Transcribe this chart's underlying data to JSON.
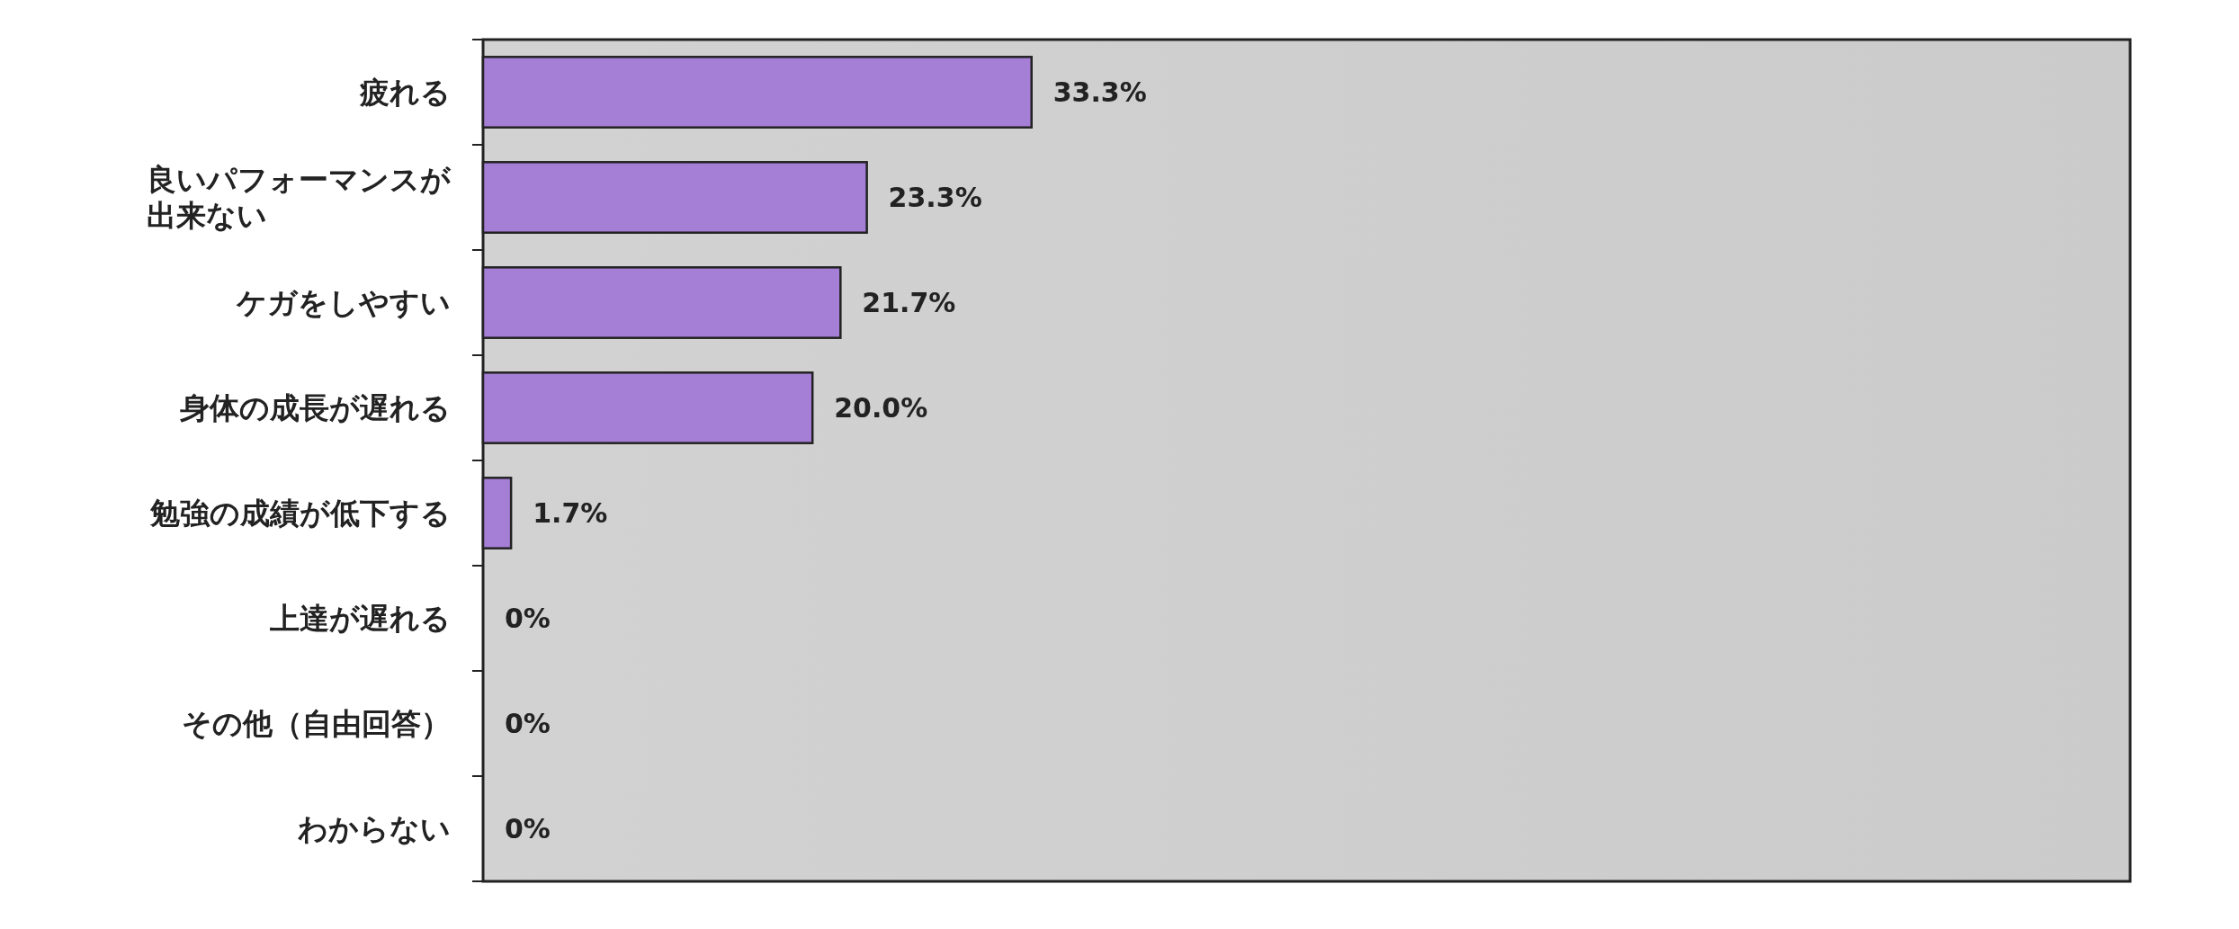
{
  "chart_data": {
    "type": "bar",
    "orientation": "horizontal",
    "categories": [
      "疲れる",
      "良いパフォーマンスが出来ない",
      "ケガをしやすい",
      "身体の成長が遅れる",
      "勉強の成績が低下する",
      "上達が遅れる",
      "その他（自由回答）",
      "わからない"
    ],
    "values": [
      33.3,
      23.3,
      21.7,
      20.0,
      1.7,
      0,
      0,
      0
    ],
    "value_labels": [
      "33.3%",
      "23.3%",
      "21.7%",
      "20.0%",
      "1.7%",
      "0%",
      "0%",
      "0%"
    ],
    "color": "#a57fd6",
    "xlim": [
      0,
      100
    ]
  }
}
